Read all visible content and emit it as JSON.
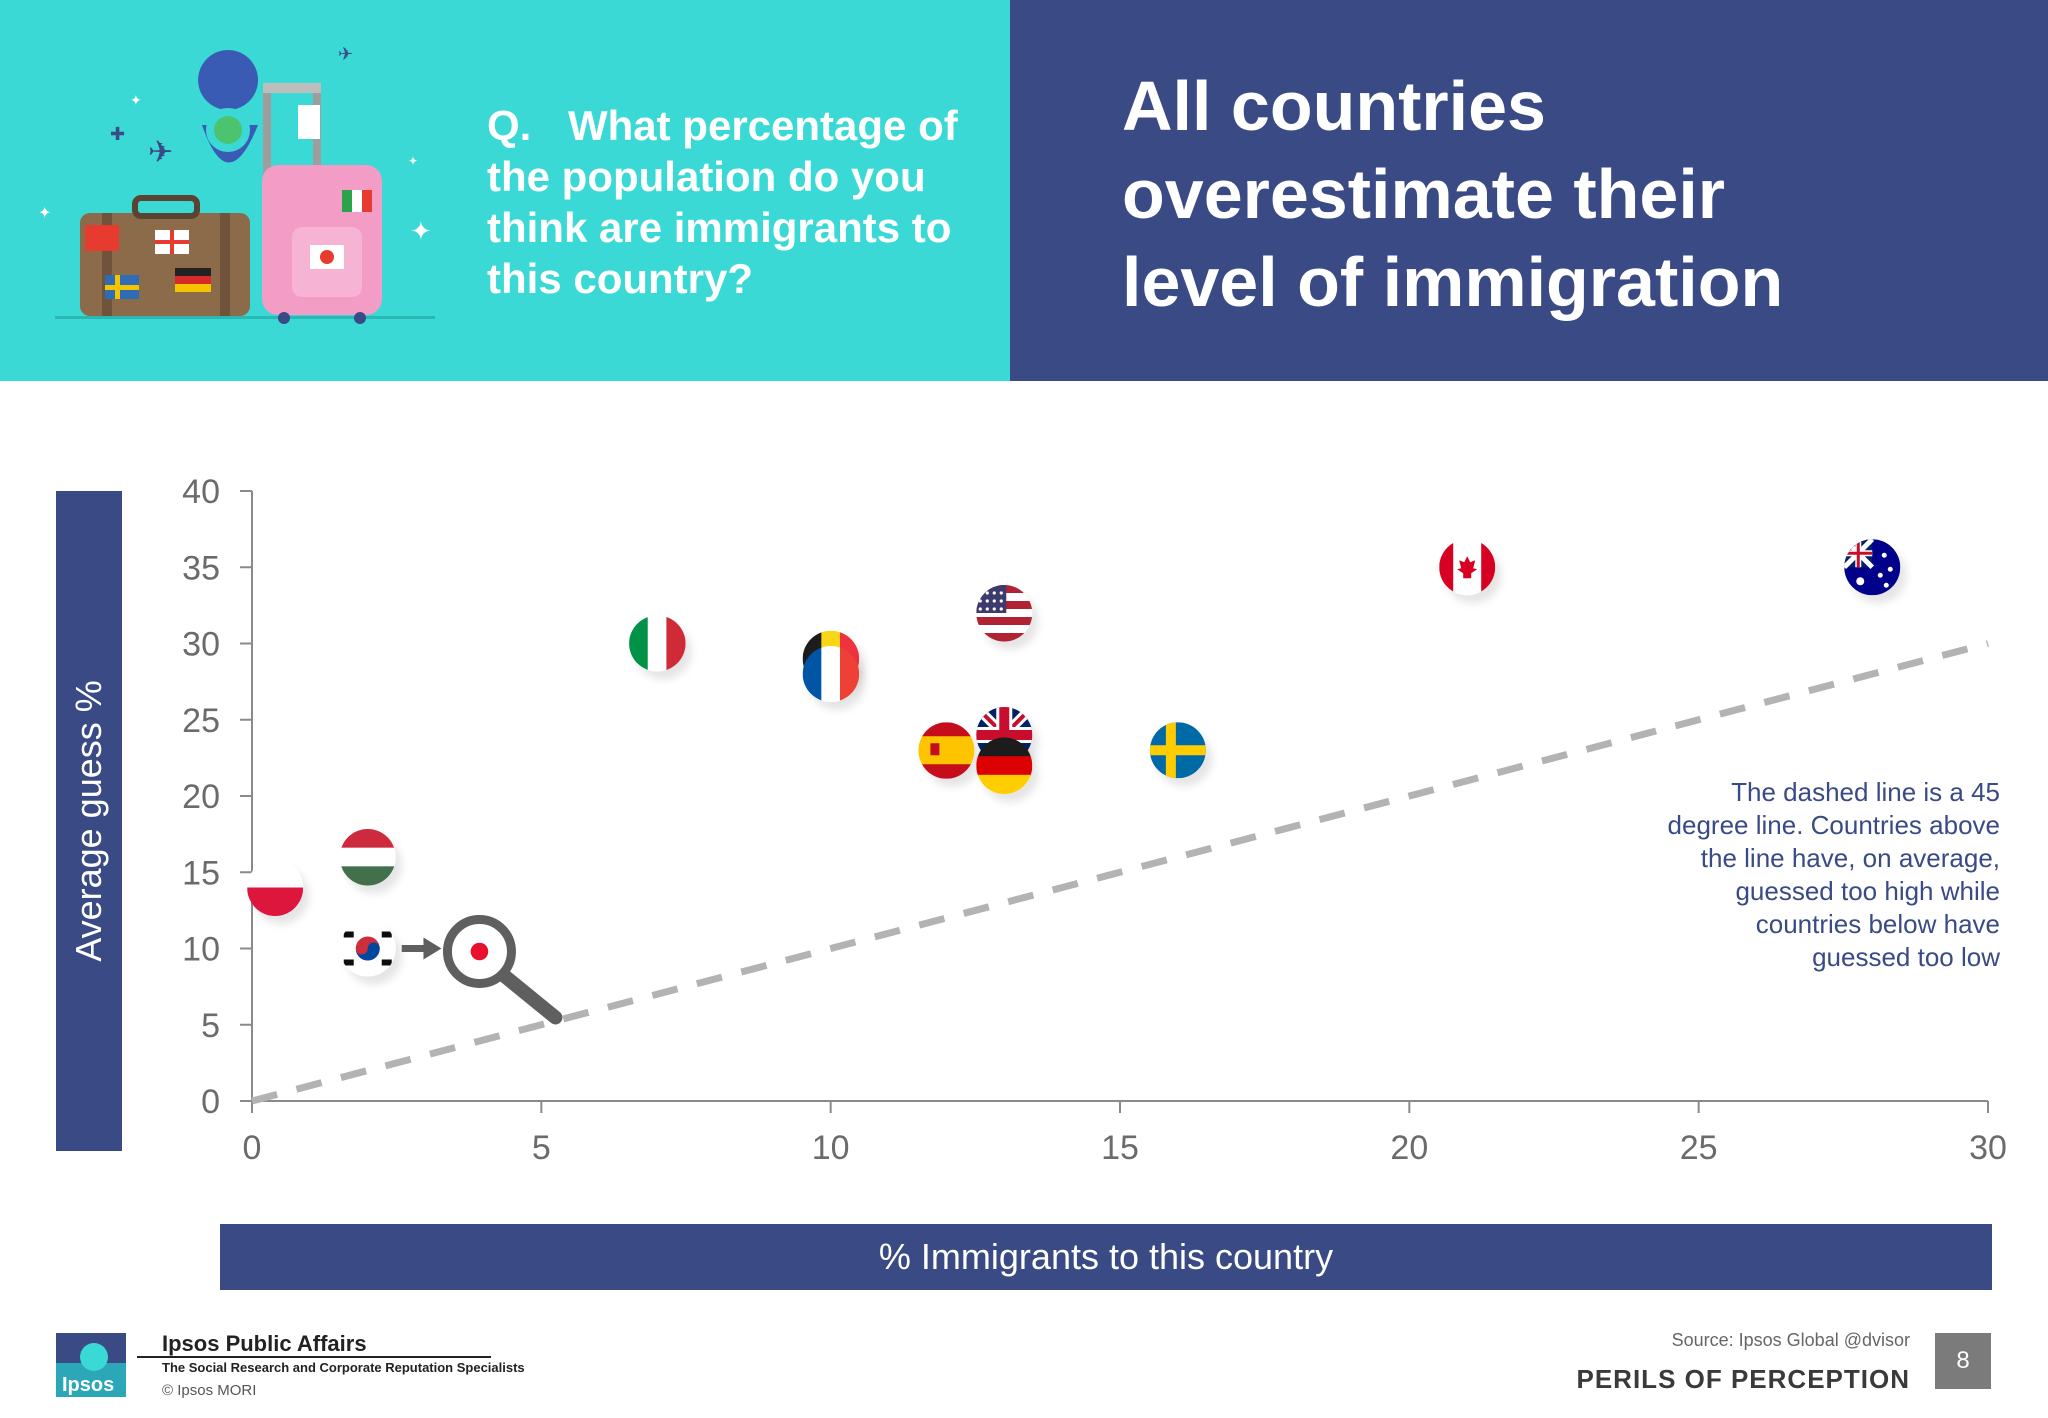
{
  "header": {
    "question_prefix": "Q.",
    "question_lines": [
      "What percentage of",
      "the population do you",
      "think are immigrants to",
      "this country?"
    ],
    "headline_lines": [
      "All countries",
      "overestimate their",
      "level of immigration"
    ]
  },
  "annotation": {
    "lines": [
      "The dashed line is a 45",
      "degree line. Countries above",
      "the line have, on average,",
      "guessed too high while",
      "countries below have",
      "guessed too low"
    ]
  },
  "footer": {
    "logo_text": "Ipsos",
    "logo_title": "Ipsos Public Affairs",
    "logo_tagline": "The Social Research and Corporate Reputation Specialists",
    "copyright": "© Ipsos MORI",
    "source": "Source: Ipsos Global @dvisor",
    "brand": "PERILS OF PERCEPTION",
    "page_number": "8"
  },
  "colors": {
    "teal": "#3bd9d6",
    "navy": "#3a4a85",
    "dashed_line": "#b3b3b3",
    "axis": "#8a8a8a"
  },
  "chart_data": {
    "type": "scatter",
    "title": "",
    "xlabel": "% Immigrants to this country",
    "ylabel": "Average guess %",
    "xlim": [
      0,
      30
    ],
    "ylim": [
      0,
      40
    ],
    "xticks": [
      0,
      5,
      10,
      15,
      20,
      25,
      30
    ],
    "yticks": [
      0,
      5,
      10,
      15,
      20,
      25,
      30,
      35,
      40
    ],
    "grid": false,
    "reference_line": {
      "style": "dashed",
      "from": [
        0,
        0
      ],
      "to": [
        30,
        30
      ]
    },
    "points": [
      {
        "x": 0.4,
        "y": 14,
        "flag": "poland-flag-icon"
      },
      {
        "x": 2.0,
        "y": 16,
        "flag": "hungary-flag-icon"
      },
      {
        "x": 2.0,
        "y": 10,
        "flag": "south-korea-flag-icon"
      },
      {
        "x": 7.0,
        "y": 30,
        "flag": "italy-flag-icon"
      },
      {
        "x": 10.0,
        "y": 29,
        "flag": "belgium-flag-icon"
      },
      {
        "x": 10.0,
        "y": 28,
        "flag": "france-flag-icon"
      },
      {
        "x": 12.0,
        "y": 23,
        "flag": "spain-flag-icon"
      },
      {
        "x": 13.0,
        "y": 32,
        "flag": "usa-flag-icon"
      },
      {
        "x": 13.0,
        "y": 24,
        "flag": "uk-flag-icon"
      },
      {
        "x": 13.0,
        "y": 22,
        "flag": "germany-flag-icon"
      },
      {
        "x": 16.0,
        "y": 23,
        "flag": "sweden-flag-icon"
      },
      {
        "x": 21.0,
        "y": 35,
        "flag": "canada-flag-icon"
      },
      {
        "x": 28.0,
        "y": 35,
        "flag": "australia-flag-icon"
      }
    ],
    "magnifier": {
      "from": [
        2.0,
        10
      ],
      "to": [
        4.0,
        10
      ],
      "flag": "japan-flag-icon"
    }
  }
}
